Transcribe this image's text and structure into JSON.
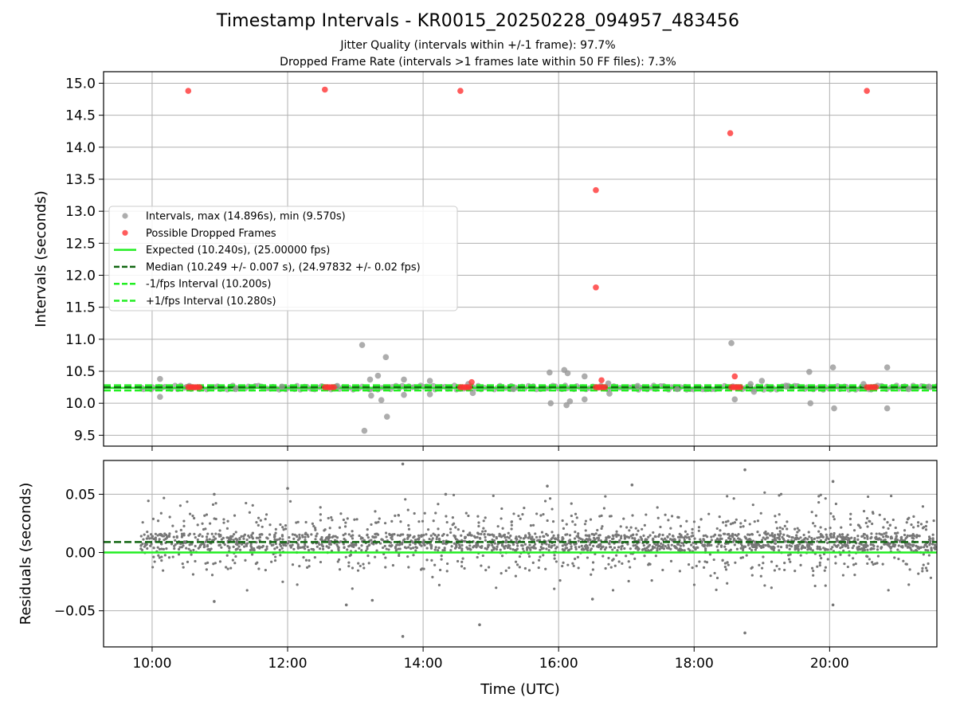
{
  "chart_data": [
    {
      "type": "scatter",
      "title": "Timestamp Intervals - KR0015_20250228_094957_483456",
      "subtitle_lines": [
        "Jitter Quality (intervals within +/-1 frame): 97.7%",
        "Dropped Frame Rate (intervals >1 frames late within 50 FF files): 7.3%"
      ],
      "xlabel": "",
      "ylabel": "Intervals (seconds)",
      "xlim": [
        "09:17",
        "21:35"
      ],
      "ylim": [
        9.33,
        15.18
      ],
      "x_ticks": [
        "10:00",
        "12:00",
        "14:00",
        "16:00",
        "18:00",
        "20:00"
      ],
      "y_ticks": [
        "9.5",
        "10.0",
        "10.5",
        "11.0",
        "11.5",
        "12.0",
        "12.5",
        "13.0",
        "13.5",
        "14.0",
        "14.5",
        "15.0"
      ],
      "grid": true,
      "legend_position": "center-left",
      "legend": [
        "Intervals, max (14.896s), min (9.570s)",
        "Possible Dropped Frames",
        "Expected (10.240s), (25.00000 fps)",
        "Median (10.249 +/- 0.007 s), (24.97832 +/- 0.02 fps)",
        "-1/fps Interval (10.200s)",
        "+1/fps Interval (10.280s)"
      ],
      "reference_lines": [
        {
          "name": "Expected",
          "y": 10.24,
          "style": "solid",
          "color": "#22ee22"
        },
        {
          "name": "Median",
          "y": 10.249,
          "style": "dashed",
          "color": "#116611"
        },
        {
          "name": "-1/fps Interval",
          "y": 10.2,
          "style": "dashed",
          "color": "#22ee22"
        },
        {
          "name": "+1/fps Interval",
          "y": 10.28,
          "style": "dashed",
          "color": "#22ee22"
        }
      ],
      "series": [
        {
          "name": "Intervals",
          "color": "#999999",
          "points": [
            [
              "10:07",
              10.38
            ],
            [
              "10:07",
              10.1
            ],
            [
              "13:06",
              10.91
            ],
            [
              "13:08",
              9.57
            ],
            [
              "13:13",
              10.37
            ],
            [
              "13:14",
              10.12
            ],
            [
              "13:20",
              10.43
            ],
            [
              "13:23",
              10.05
            ],
            [
              "13:27",
              10.72
            ],
            [
              "13:28",
              9.79
            ],
            [
              "13:43",
              10.37
            ],
            [
              "13:43",
              10.13
            ],
            [
              "14:06",
              10.35
            ],
            [
              "14:06",
              10.14
            ],
            [
              "14:40",
              10.3
            ],
            [
              "14:44",
              10.16
            ],
            [
              "15:52",
              10.48
            ],
            [
              "15:53",
              10.0
            ],
            [
              "16:05",
              10.52
            ],
            [
              "16:07",
              9.97
            ],
            [
              "16:08",
              10.47
            ],
            [
              "16:10",
              10.03
            ],
            [
              "16:23",
              10.42
            ],
            [
              "16:23",
              10.06
            ],
            [
              "16:44",
              10.31
            ],
            [
              "16:45",
              10.15
            ],
            [
              "18:33",
              10.94
            ],
            [
              "18:36",
              10.06
            ],
            [
              "18:50",
              10.3
            ],
            [
              "18:53",
              10.18
            ],
            [
              "19:00",
              10.35
            ],
            [
              "19:42",
              10.49
            ],
            [
              "19:43",
              10.0
            ],
            [
              "20:03",
              10.56
            ],
            [
              "20:04",
              9.92
            ],
            [
              "20:30",
              10.3
            ],
            [
              "20:51",
              10.56
            ],
            [
              "20:51",
              9.92
            ],
            [
              "10:33",
              10.27
            ],
            [
              "11:14",
              10.22
            ],
            [
              "11:55",
              10.26
            ],
            [
              "12:44",
              10.27
            ],
            [
              "15:20",
              10.22
            ],
            [
              "17:10",
              10.27
            ],
            [
              "17:45",
              10.22
            ],
            [
              "19:22",
              10.26
            ],
            [
              "21:10",
              10.22
            ],
            [
              "21:28",
              10.26
            ]
          ]
        },
        {
          "name": "Possible Dropped Frames",
          "color": "#ff3333",
          "points": [
            [
              "10:32",
              14.88
            ],
            [
              "12:33",
              14.9
            ],
            [
              "14:33",
              14.88
            ],
            [
              "16:33",
              13.33
            ],
            [
              "16:33",
              11.81
            ],
            [
              "18:32",
              14.22
            ],
            [
              "20:33",
              14.88
            ],
            [
              "14:43",
              10.33
            ],
            [
              "16:38",
              10.36
            ],
            [
              "18:36",
              10.42
            ],
            [
              "10:32",
              10.25
            ],
            [
              "10:34",
              10.25
            ],
            [
              "10:36",
              10.25
            ],
            [
              "10:38",
              10.25
            ],
            [
              "10:40",
              10.25
            ],
            [
              "10:42",
              10.25
            ],
            [
              "12:33",
              10.25
            ],
            [
              "12:35",
              10.25
            ],
            [
              "12:37",
              10.25
            ],
            [
              "12:39",
              10.25
            ],
            [
              "12:41",
              10.25
            ],
            [
              "14:33",
              10.25
            ],
            [
              "14:35",
              10.25
            ],
            [
              "14:37",
              10.25
            ],
            [
              "14:39",
              10.25
            ],
            [
              "14:41",
              10.25
            ],
            [
              "16:33",
              10.25
            ],
            [
              "16:35",
              10.25
            ],
            [
              "16:37",
              10.25
            ],
            [
              "16:39",
              10.25
            ],
            [
              "16:41",
              10.25
            ],
            [
              "18:33",
              10.25
            ],
            [
              "18:35",
              10.25
            ],
            [
              "18:37",
              10.25
            ],
            [
              "18:39",
              10.25
            ],
            [
              "18:41",
              10.25
            ],
            [
              "20:33",
              10.25
            ],
            [
              "20:35",
              10.25
            ],
            [
              "20:37",
              10.25
            ],
            [
              "20:39",
              10.25
            ],
            [
              "20:41",
              10.25
            ]
          ]
        }
      ]
    },
    {
      "type": "scatter",
      "title": "",
      "xlabel": "Time (UTC)",
      "ylabel": "Residuals (seconds)",
      "xlim": [
        "09:17",
        "21:35"
      ],
      "ylim": [
        -0.081,
        0.079
      ],
      "x_ticks": [
        "10:00",
        "12:00",
        "14:00",
        "16:00",
        "18:00",
        "20:00"
      ],
      "y_ticks": [
        "0.05",
        "0.00",
        "−0.05"
      ],
      "grid": true,
      "reference_lines": [
        {
          "name": "Expected",
          "y": 0.0,
          "style": "solid",
          "color": "#22ee22"
        },
        {
          "name": "Median",
          "y": 0.009,
          "style": "dashed",
          "color": "#116611"
        }
      ],
      "series": [
        {
          "name": "Residuals",
          "color": "#777777",
          "time_range": [
            "09:50",
            "21:34"
          ],
          "center": 0.009,
          "typical_spread": 0.006,
          "outliers": [
            [
              "13:42",
              0.076
            ],
            [
              "13:42",
              -0.072
            ],
            [
              "14:50",
              -0.062
            ],
            [
              "18:45",
              0.071
            ],
            [
              "18:45",
              -0.069
            ],
            [
              "20:03",
              0.061
            ],
            [
              "20:03",
              -0.045
            ],
            [
              "10:55",
              0.05
            ],
            [
              "12:00",
              0.055
            ],
            [
              "15:50",
              0.057
            ],
            [
              "17:05",
              0.058
            ],
            [
              "13:15",
              -0.041
            ],
            [
              "10:55",
              -0.042
            ],
            [
              "12:52",
              -0.045
            ],
            [
              "14:20",
              0.05
            ],
            [
              "16:30",
              -0.04
            ]
          ]
        }
      ]
    }
  ]
}
